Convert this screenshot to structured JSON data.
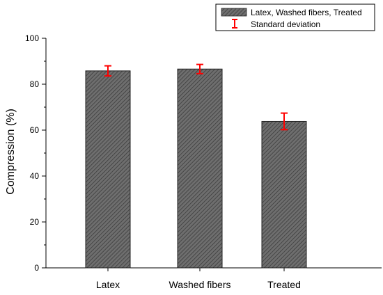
{
  "chart_data": {
    "type": "bar",
    "categories": [
      "Latex",
      "Washed fibers",
      "Treated"
    ],
    "series": [
      {
        "name": "Latex, Washed fibers, Treated",
        "values": [
          85.8,
          86.6,
          63.8
        ],
        "std_dev": [
          2.2,
          2.0,
          3.6
        ]
      }
    ],
    "error_legend_label": "Standard deviation",
    "xlabel": "",
    "ylabel": "Compression (%)",
    "ylim": [
      0,
      100
    ],
    "yticks": [
      0,
      20,
      40,
      60,
      80,
      100
    ],
    "grid": false,
    "legend_position": "top-right",
    "colors": {
      "bar_fill": "#6e6e6e",
      "bar_hatch": "#3c3c3c",
      "bar_edge": "#222222",
      "error_bar": "#ff0000",
      "axis": "#000000"
    }
  }
}
